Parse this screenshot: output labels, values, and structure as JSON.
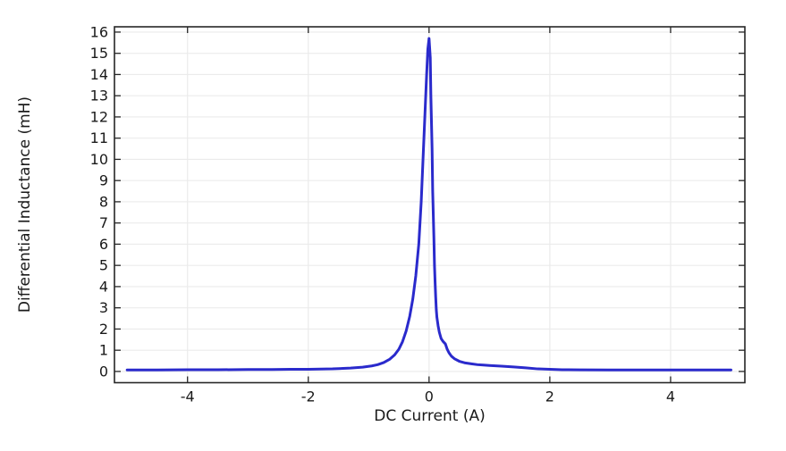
{
  "chart_data": {
    "type": "line",
    "title": "",
    "xlabel": "DC Current (A)",
    "ylabel": "Differential Inductance (mH)",
    "xlim": [
      -5.21,
      5.23
    ],
    "ylim": [
      -0.53,
      16.25
    ],
    "xticks": [
      -4,
      -2,
      0,
      2,
      4
    ],
    "yticks": [
      0,
      1,
      2,
      3,
      4,
      5,
      6,
      7,
      8,
      9,
      10,
      11,
      12,
      13,
      14,
      15,
      16
    ],
    "grid": true,
    "legend_position": "none",
    "series": [
      {
        "name": "differential-inductance",
        "color": "#2a2acc",
        "peak_value_mH": 15.7,
        "peak_at_A": 0,
        "x": [
          -5,
          -4.5,
          -4,
          -3.5,
          -3,
          -2.6,
          -2.3,
          -2,
          -1.6,
          -1.3,
          -1.1,
          -0.95,
          -0.85,
          -0.75,
          -0.65,
          -0.57,
          -0.5,
          -0.44,
          -0.38,
          -0.32,
          -0.27,
          -0.22,
          -0.17,
          -0.13,
          -0.1,
          -0.07,
          -0.04,
          -0.02,
          0,
          0.02,
          0.03,
          0.05,
          0.06,
          0.08,
          0.09,
          0.1,
          0.11,
          0.12,
          0.13,
          0.15,
          0.17,
          0.2,
          0.23,
          0.27,
          0.3,
          0.33,
          0.37,
          0.42,
          0.5,
          0.6,
          0.7,
          0.8,
          0.9,
          1,
          1.2,
          1.4,
          1.6,
          1.8,
          2,
          2.2,
          2.5,
          3,
          3.5,
          4,
          4.5,
          5
        ],
        "y": [
          0.07,
          0.07,
          0.08,
          0.08,
          0.09,
          0.09,
          0.1,
          0.1,
          0.12,
          0.16,
          0.2,
          0.26,
          0.32,
          0.42,
          0.58,
          0.78,
          1.05,
          1.4,
          1.9,
          2.6,
          3.4,
          4.5,
          6.0,
          8.0,
          10.0,
          12.0,
          14.0,
          15.2,
          15.7,
          14.8,
          13.0,
          10.5,
          8.5,
          6.3,
          5.0,
          4.2,
          3.5,
          2.9,
          2.55,
          2.15,
          1.85,
          1.55,
          1.42,
          1.3,
          1.05,
          0.88,
          0.72,
          0.6,
          0.48,
          0.4,
          0.36,
          0.32,
          0.3,
          0.28,
          0.25,
          0.21,
          0.17,
          0.12,
          0.1,
          0.08,
          0.075,
          0.07,
          0.07,
          0.07,
          0.07,
          0.07
        ]
      }
    ]
  },
  "style": {
    "background_color": "#ffffff",
    "grid_color": "#ebebeb",
    "frame_color": "#262626",
    "text_color": "#1a1a1a",
    "line_color": "#2a2acc"
  }
}
